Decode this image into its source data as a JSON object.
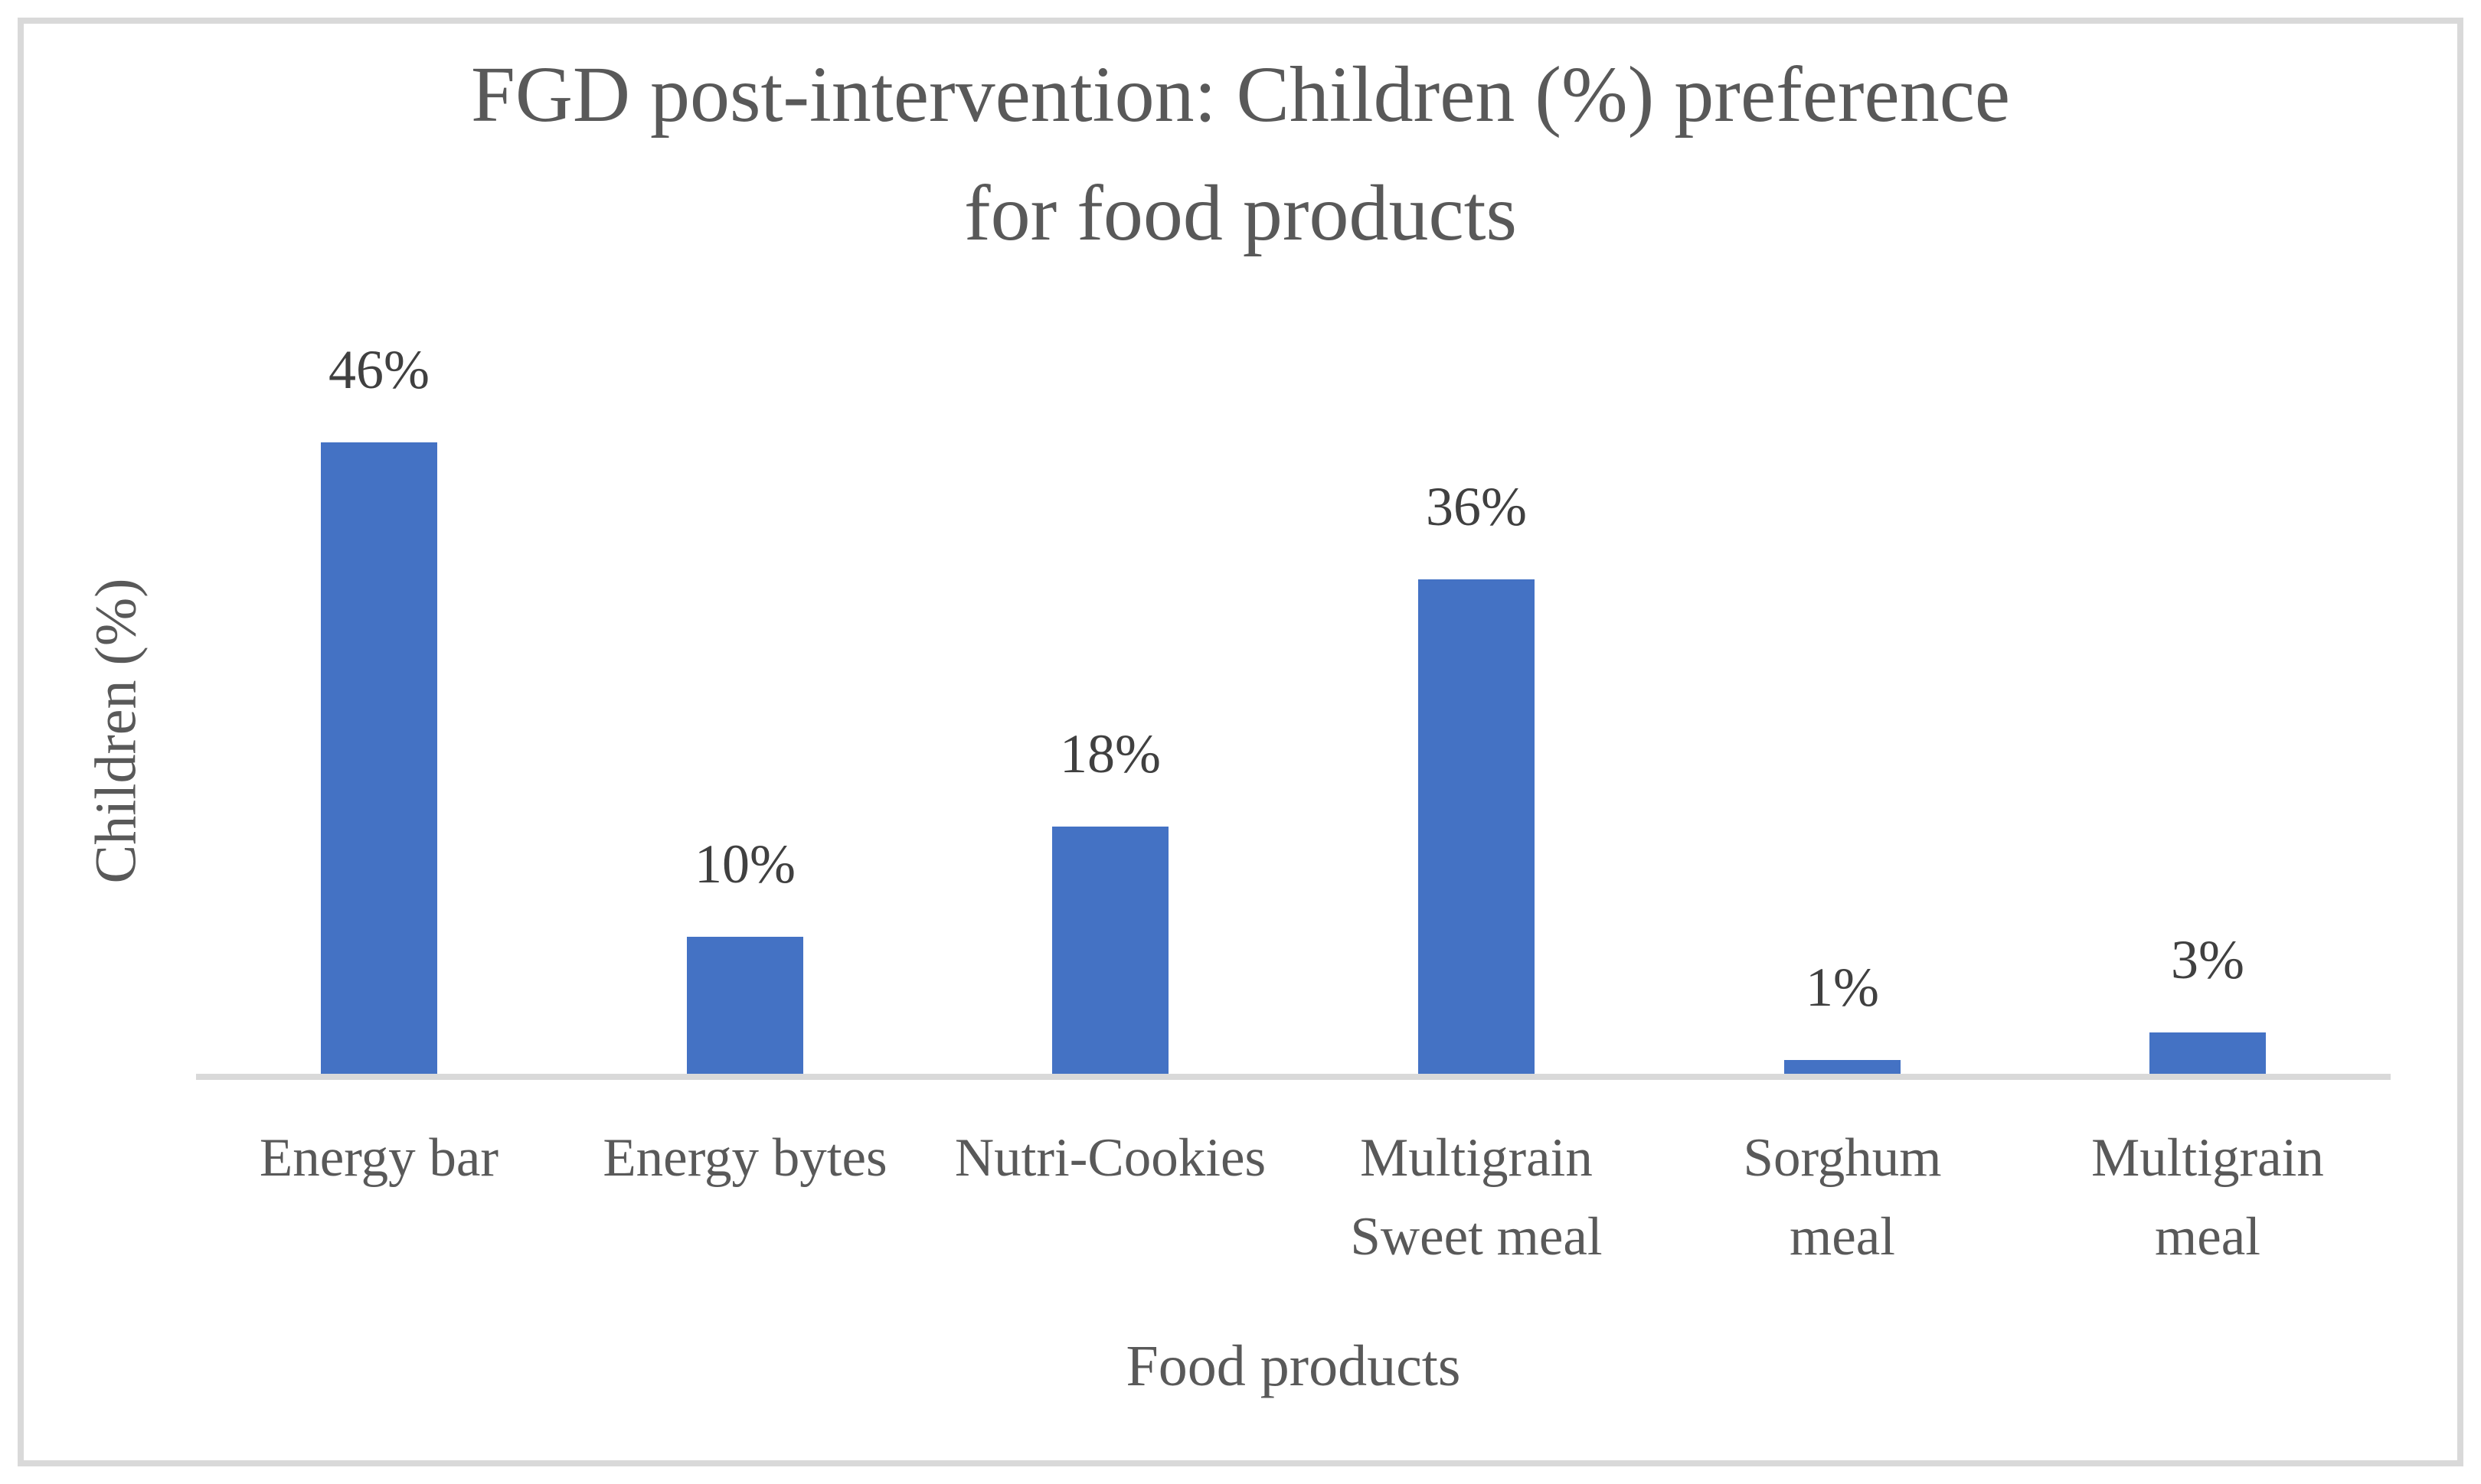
{
  "figure": {
    "background": "#FFFFFF",
    "border_color": "#D9D9D9"
  },
  "chart_data": {
    "type": "bar",
    "title": "FGD post-intervention: Children (%) preference for food products",
    "title_lines": [
      "FGD post-intervention: Children (%) preference",
      "for food products"
    ],
    "categories": [
      "Energy bar",
      "Energy bytes",
      "Nutri-Cookies",
      "Multigrain Sweet meal",
      "Sorghum meal",
      "Multigrain meal"
    ],
    "category_label_lines": [
      [
        "Energy bar"
      ],
      [
        "Energy bytes"
      ],
      [
        "Nutri-Cookies"
      ],
      [
        "Multigrain",
        "Sweet meal"
      ],
      [
        "Sorghum",
        "meal"
      ],
      [
        "Multigrain",
        "meal"
      ]
    ],
    "values": [
      46,
      10,
      18,
      36,
      1,
      3
    ],
    "data_labels": [
      "46%",
      "10%",
      "18%",
      "36%",
      "1%",
      "3%"
    ],
    "xlabel": "Food products",
    "ylabel": "Children (%)",
    "ylim": [
      0,
      50
    ],
    "grid": false,
    "legend_position": "none",
    "bar_color": "#4472C4",
    "axis_line_color": "#D9D9D9",
    "axis_text_color": "#595959",
    "data_label_color": "#404040"
  }
}
